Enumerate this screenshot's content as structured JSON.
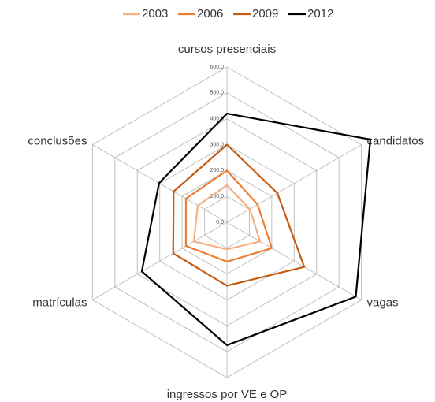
{
  "chart_data": {
    "type": "radar",
    "categories": [
      "cursos presenciais",
      "candidatos",
      "vagas",
      "ingressos por VE e OP",
      "matrículas",
      "conclusões"
    ],
    "ylim": [
      0,
      600
    ],
    "yticks": [
      {
        "value": 0,
        "label": "0,0"
      },
      {
        "value": 100,
        "label": "100,0"
      },
      {
        "value": 200,
        "label": "200,0"
      },
      {
        "value": 300,
        "label": "300,0"
      },
      {
        "value": 400,
        "label": "400,0"
      },
      {
        "value": 500,
        "label": "500,0"
      },
      {
        "value": 600,
        "label": "600,0"
      }
    ],
    "grid": true,
    "legend": "top",
    "series": [
      {
        "name": "2003",
        "color": "#f4b183",
        "values": [
          143,
          102,
          148,
          104,
          148,
          130
        ]
      },
      {
        "name": "2006",
        "color": "#ed7d31",
        "values": [
          200,
          137,
          200,
          152,
          183,
          183
        ]
      },
      {
        "name": "2009",
        "color": "#c55a11",
        "values": [
          300,
          225,
          345,
          245,
          240,
          238
        ]
      },
      {
        "name": "2012",
        "color": "#000000",
        "values": [
          420,
          640,
          575,
          475,
          380,
          303
        ]
      }
    ]
  }
}
